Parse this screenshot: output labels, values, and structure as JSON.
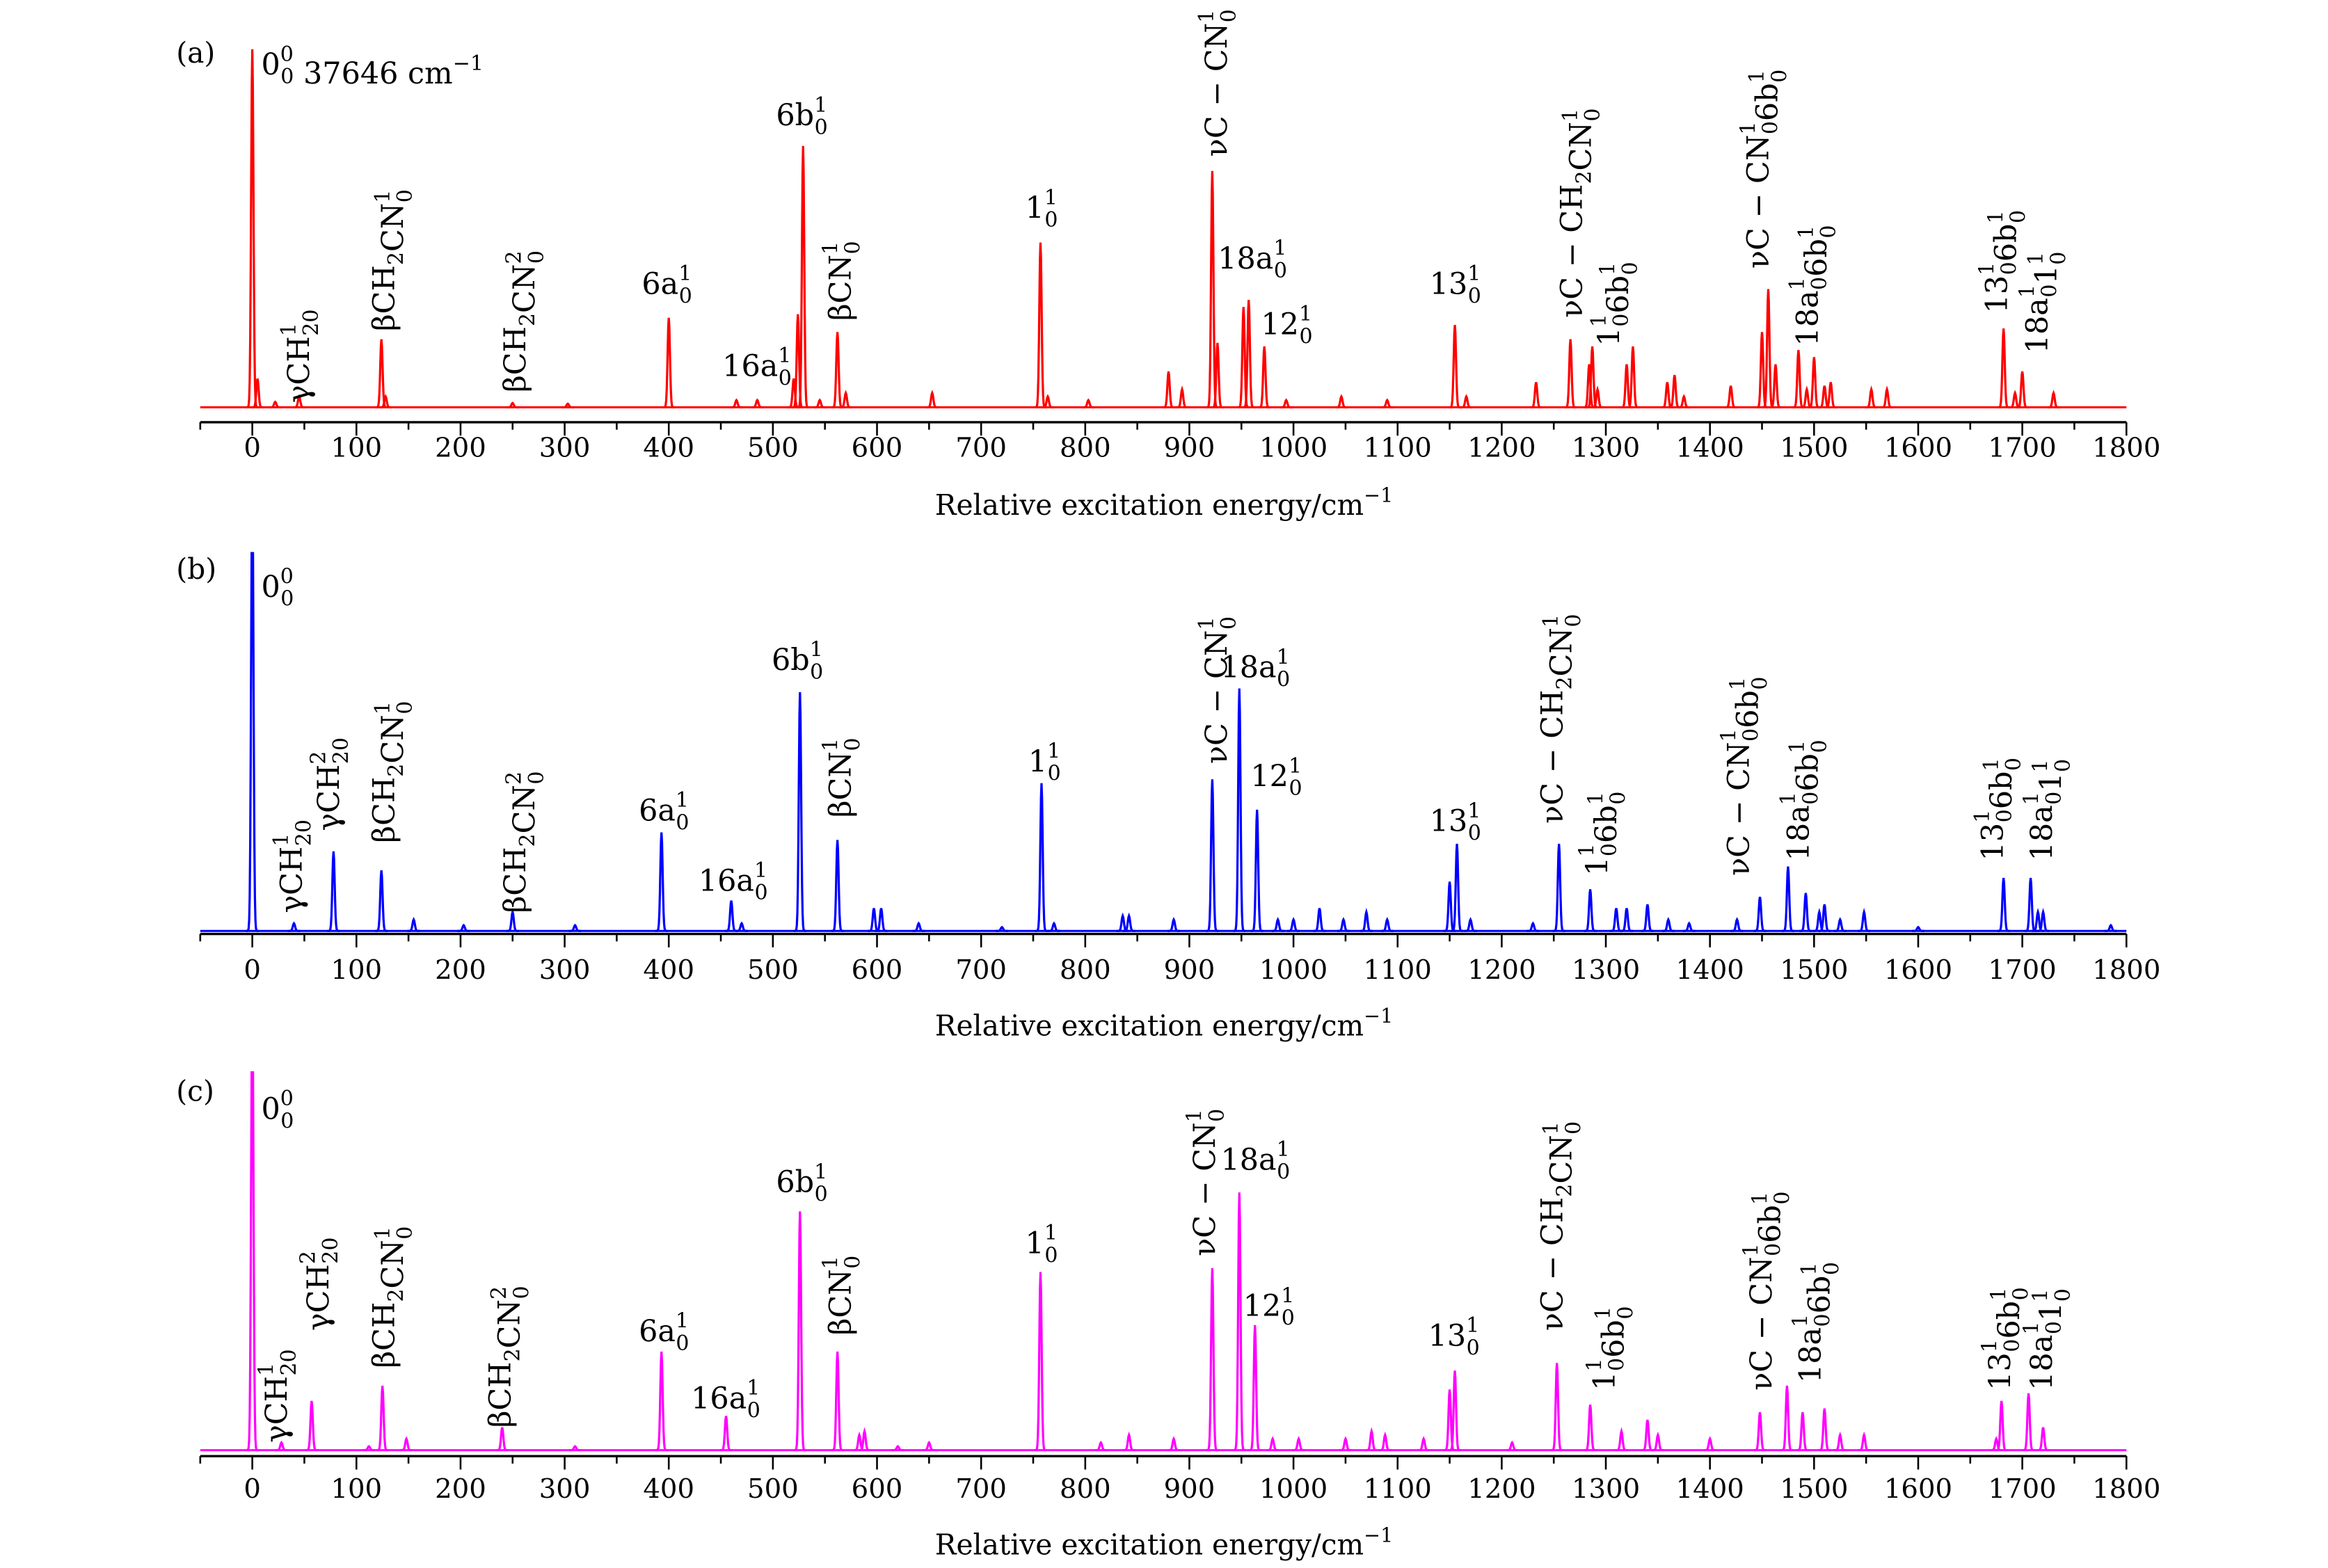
{
  "chart_data": [
    {
      "type": "line",
      "panel_label": "(a)",
      "color": "#ff0000",
      "xlabel": [
        [
          "Relative excitation energy/cm",
          "",
          "−1"
        ]
      ],
      "xlim": [
        -50,
        1800
      ],
      "ylim": [
        0,
        1
      ],
      "xticks": [
        0,
        100,
        200,
        300,
        400,
        500,
        600,
        700,
        800,
        900,
        1000,
        1100,
        1200,
        1300,
        1400,
        1500,
        1600,
        1700,
        1800
      ],
      "peaks": [
        [
          0,
          1.0
        ],
        [
          5,
          0.08
        ],
        [
          22,
          0.015
        ],
        [
          45,
          0.03
        ],
        [
          124,
          0.19
        ],
        [
          128,
          0.03
        ],
        [
          250,
          0.012
        ],
        [
          303,
          0.01
        ],
        [
          400,
          0.25
        ],
        [
          465,
          0.02
        ],
        [
          485,
          0.02
        ],
        [
          520,
          0.08
        ],
        [
          524,
          0.26
        ],
        [
          529,
          0.73
        ],
        [
          545,
          0.02
        ],
        [
          562,
          0.21
        ],
        [
          570,
          0.04
        ],
        [
          653,
          0.04
        ],
        [
          757,
          0.46
        ],
        [
          764,
          0.03
        ],
        [
          803,
          0.02
        ],
        [
          880,
          0.1
        ],
        [
          893,
          0.05
        ],
        [
          922,
          0.66
        ],
        [
          927,
          0.18
        ],
        [
          952,
          0.28
        ],
        [
          957,
          0.3
        ],
        [
          972,
          0.17
        ],
        [
          993,
          0.02
        ],
        [
          1046,
          0.03
        ],
        [
          1090,
          0.02
        ],
        [
          1155,
          0.23
        ],
        [
          1166,
          0.03
        ],
        [
          1233,
          0.07
        ],
        [
          1266,
          0.19
        ],
        [
          1284,
          0.12
        ],
        [
          1287,
          0.17
        ],
        [
          1292,
          0.05
        ],
        [
          1320,
          0.12
        ],
        [
          1326,
          0.17
        ],
        [
          1359,
          0.07
        ],
        [
          1366,
          0.09
        ],
        [
          1375,
          0.03
        ],
        [
          1420,
          0.06
        ],
        [
          1450,
          0.21
        ],
        [
          1456,
          0.33
        ],
        [
          1463,
          0.12
        ],
        [
          1485,
          0.16
        ],
        [
          1493,
          0.05
        ],
        [
          1500,
          0.14
        ],
        [
          1510,
          0.06
        ],
        [
          1516,
          0.07
        ],
        [
          1555,
          0.05
        ],
        [
          1570,
          0.05
        ],
        [
          1682,
          0.22
        ],
        [
          1693,
          0.04
        ],
        [
          1700,
          0.1
        ],
        [
          1730,
          0.04
        ]
      ],
      "annotations": [
        [
          [
            "0",
            "0",
            "0"
          ],
          [
            " 37646 cm",
            "",
            "−1"
          ]
        ],
        [
          [
            "γCH",
            "20",
            "1"
          ]
        ],
        [
          [
            "βCH",
            "2",
            ""
          ],
          [
            "CN",
            "0",
            "1"
          ]
        ],
        [
          [
            "βCH",
            "2",
            ""
          ],
          [
            "CN",
            "0",
            "2"
          ]
        ],
        [
          [
            "6a",
            "0",
            "1"
          ]
        ],
        [
          [
            "16a",
            "0",
            "1"
          ]
        ],
        [
          [
            "6b",
            "0",
            "1"
          ]
        ],
        [
          [
            "βCN",
            "0",
            "1"
          ]
        ],
        [
          [
            "1",
            "0",
            "1"
          ]
        ],
        [
          [
            "νC − CN",
            "0",
            "1"
          ]
        ],
        [
          [
            "18a",
            "0",
            "1"
          ]
        ],
        [
          [
            "12",
            "0",
            "1"
          ]
        ],
        [
          [
            "13",
            "0",
            "1"
          ]
        ],
        [
          [
            "νC − CH",
            "2",
            ""
          ],
          [
            "CN",
            "0",
            "1"
          ]
        ],
        [
          [
            "1",
            "0",
            "1"
          ],
          [
            "6b",
            "0",
            "1"
          ]
        ],
        [
          [
            "νC − CN",
            "0",
            "1"
          ],
          [
            "6b",
            "0",
            "1"
          ]
        ],
        [
          [
            "18a",
            "0",
            "1"
          ],
          [
            "6b",
            "0",
            "1"
          ]
        ],
        [
          [
            "13",
            "0",
            "1"
          ],
          [
            "6b",
            "0",
            "1"
          ]
        ],
        [
          [
            "18a",
            "0",
            "1"
          ],
          [
            "1",
            "0",
            "1"
          ]
        ]
      ]
    },
    {
      "type": "line",
      "panel_label": "(b)",
      "color": "#0000ff",
      "xlabel": [
        [
          "Relative excitation energy/cm",
          "",
          "−1"
        ]
      ],
      "xlim": [
        -50,
        1800
      ],
      "ylim": [
        0,
        1
      ],
      "xticks": [
        0,
        100,
        200,
        300,
        400,
        500,
        600,
        700,
        800,
        900,
        1000,
        1100,
        1200,
        1300,
        1400,
        1500,
        1600,
        1700,
        1800
      ],
      "peaks": [
        [
          0,
          1.2
        ],
        [
          40,
          0.02
        ],
        [
          78,
          0.21
        ],
        [
          124,
          0.16
        ],
        [
          155,
          0.03
        ],
        [
          203,
          0.015
        ],
        [
          250,
          0.05
        ],
        [
          310,
          0.015
        ],
        [
          393,
          0.26
        ],
        [
          460,
          0.08
        ],
        [
          470,
          0.02
        ],
        [
          526,
          0.63
        ],
        [
          562,
          0.24
        ],
        [
          597,
          0.06
        ],
        [
          604,
          0.06
        ],
        [
          640,
          0.02
        ],
        [
          720,
          0.01
        ],
        [
          758,
          0.39
        ],
        [
          770,
          0.02
        ],
        [
          836,
          0.04
        ],
        [
          842,
          0.04
        ],
        [
          885,
          0.03
        ],
        [
          922,
          0.4
        ],
        [
          948,
          0.64
        ],
        [
          965,
          0.32
        ],
        [
          985,
          0.03
        ],
        [
          1000,
          0.03
        ],
        [
          1025,
          0.06
        ],
        [
          1048,
          0.03
        ],
        [
          1070,
          0.05
        ],
        [
          1090,
          0.03
        ],
        [
          1150,
          0.13
        ],
        [
          1157,
          0.23
        ],
        [
          1170,
          0.03
        ],
        [
          1230,
          0.02
        ],
        [
          1255,
          0.23
        ],
        [
          1285,
          0.11
        ],
        [
          1310,
          0.06
        ],
        [
          1320,
          0.06
        ],
        [
          1340,
          0.07
        ],
        [
          1360,
          0.03
        ],
        [
          1380,
          0.02
        ],
        [
          1426,
          0.03
        ],
        [
          1448,
          0.09
        ],
        [
          1475,
          0.17
        ],
        [
          1492,
          0.1
        ],
        [
          1505,
          0.05
        ],
        [
          1510,
          0.07
        ],
        [
          1525,
          0.03
        ],
        [
          1548,
          0.05
        ],
        [
          1600,
          0.01
        ],
        [
          1682,
          0.14
        ],
        [
          1708,
          0.14
        ],
        [
          1715,
          0.05
        ],
        [
          1720,
          0.05
        ],
        [
          1785,
          0.015
        ]
      ],
      "annotations": [
        [
          [
            "0",
            "0",
            "0"
          ]
        ],
        [
          [
            "γCH",
            "20",
            "1"
          ]
        ],
        [
          [
            "γCH",
            "20",
            "2"
          ]
        ],
        [
          [
            "βCH",
            "2",
            ""
          ],
          [
            "CN",
            "0",
            "1"
          ]
        ],
        [
          [
            "βCH",
            "2",
            ""
          ],
          [
            "CN",
            "0",
            "2"
          ]
        ],
        [
          [
            "6a",
            "0",
            "1"
          ]
        ],
        [
          [
            "16a",
            "0",
            "1"
          ]
        ],
        [
          [
            "6b",
            "0",
            "1"
          ]
        ],
        [
          [
            "βCN",
            "0",
            "1"
          ]
        ],
        [
          [
            "1",
            "0",
            "1"
          ]
        ],
        [
          [
            "νC − CN",
            "0",
            "1"
          ]
        ],
        [
          [
            "18a",
            "0",
            "1"
          ]
        ],
        [
          [
            "12",
            "0",
            "1"
          ]
        ],
        [
          [
            "13",
            "0",
            "1"
          ]
        ],
        [
          [
            "νC − CH",
            "2",
            ""
          ],
          [
            "CN",
            "0",
            "1"
          ]
        ],
        [
          [
            "1",
            "0",
            "1"
          ],
          [
            "6b",
            "0",
            "1"
          ]
        ],
        [
          [
            "νC − CN",
            "0",
            "1"
          ],
          [
            "6b",
            "0",
            "1"
          ]
        ],
        [
          [
            "18a",
            "0",
            "1"
          ],
          [
            "6b",
            "0",
            "1"
          ]
        ],
        [
          [
            "13",
            "0",
            "1"
          ],
          [
            "6b",
            "0",
            "1"
          ]
        ],
        [
          [
            "18a",
            "0",
            "1"
          ],
          [
            "1",
            "0",
            "1"
          ]
        ]
      ]
    },
    {
      "type": "line",
      "panel_label": "(c)",
      "color": "#ff00ff",
      "xlabel": [
        [
          "Relative excitation energy/cm",
          "",
          "−1"
        ]
      ],
      "xlim": [
        -50,
        1800
      ],
      "ylim": [
        0,
        1
      ],
      "xticks": [
        0,
        100,
        200,
        300,
        400,
        500,
        600,
        700,
        800,
        900,
        1000,
        1100,
        1200,
        1300,
        1400,
        1500,
        1600,
        1700,
        1800
      ],
      "peaks": [
        [
          0,
          1.2
        ],
        [
          28,
          0.02
        ],
        [
          57,
          0.13
        ],
        [
          112,
          0.01
        ],
        [
          125,
          0.17
        ],
        [
          148,
          0.03
        ],
        [
          240,
          0.06
        ],
        [
          310,
          0.01
        ],
        [
          393,
          0.26
        ],
        [
          455,
          0.09
        ],
        [
          526,
          0.63
        ],
        [
          562,
          0.26
        ],
        [
          583,
          0.04
        ],
        [
          588,
          0.05
        ],
        [
          620,
          0.01
        ],
        [
          650,
          0.02
        ],
        [
          757,
          0.47
        ],
        [
          815,
          0.02
        ],
        [
          842,
          0.04
        ],
        [
          885,
          0.03
        ],
        [
          922,
          0.48
        ],
        [
          948,
          0.68
        ],
        [
          963,
          0.33
        ],
        [
          980,
          0.03
        ],
        [
          1005,
          0.03
        ],
        [
          1050,
          0.03
        ],
        [
          1075,
          0.05
        ],
        [
          1088,
          0.04
        ],
        [
          1125,
          0.03
        ],
        [
          1150,
          0.16
        ],
        [
          1155,
          0.21
        ],
        [
          1210,
          0.02
        ],
        [
          1253,
          0.23
        ],
        [
          1285,
          0.12
        ],
        [
          1315,
          0.05
        ],
        [
          1340,
          0.08
        ],
        [
          1350,
          0.04
        ],
        [
          1400,
          0.03
        ],
        [
          1448,
          0.1
        ],
        [
          1474,
          0.17
        ],
        [
          1489,
          0.1
        ],
        [
          1510,
          0.11
        ],
        [
          1525,
          0.04
        ],
        [
          1548,
          0.04
        ],
        [
          1675,
          0.03
        ],
        [
          1680,
          0.13
        ],
        [
          1706,
          0.15
        ],
        [
          1720,
          0.06
        ]
      ],
      "annotations": [
        [
          [
            "0",
            "0",
            "0"
          ]
        ],
        [
          [
            "γCH",
            "20",
            "1"
          ]
        ],
        [
          [
            "γCH",
            "20",
            "2"
          ]
        ],
        [
          [
            "βCH",
            "2",
            ""
          ],
          [
            "CN",
            "0",
            "1"
          ]
        ],
        [
          [
            "βCH",
            "2",
            ""
          ],
          [
            "CN",
            "0",
            "2"
          ]
        ],
        [
          [
            "6a",
            "0",
            "1"
          ]
        ],
        [
          [
            "16a",
            "0",
            "1"
          ]
        ],
        [
          [
            "6b",
            "0",
            "1"
          ]
        ],
        [
          [
            "βCN",
            "0",
            "1"
          ]
        ],
        [
          [
            "1",
            "0",
            "1"
          ]
        ],
        [
          [
            "νC − CN",
            "0",
            "1"
          ]
        ],
        [
          [
            "18a",
            "0",
            "1"
          ]
        ],
        [
          [
            "12",
            "0",
            "1"
          ]
        ],
        [
          [
            "13",
            "0",
            "1"
          ]
        ],
        [
          [
            "νC − CH",
            "2",
            ""
          ],
          [
            "CN",
            "0",
            "1"
          ]
        ],
        [
          [
            "1",
            "0",
            "1"
          ],
          [
            "6b",
            "0",
            "1"
          ]
        ],
        [
          [
            "νC − CN",
            "0",
            "1"
          ],
          [
            "6b",
            "0",
            "1"
          ]
        ],
        [
          [
            "18a",
            "0",
            "1"
          ],
          [
            "6b",
            "0",
            "1"
          ]
        ],
        [
          [
            "13",
            "0",
            "1"
          ],
          [
            "6b",
            "0",
            "1"
          ]
        ],
        [
          [
            "18a",
            "0",
            "1"
          ],
          [
            "1",
            "0",
            "1"
          ]
        ]
      ]
    }
  ]
}
